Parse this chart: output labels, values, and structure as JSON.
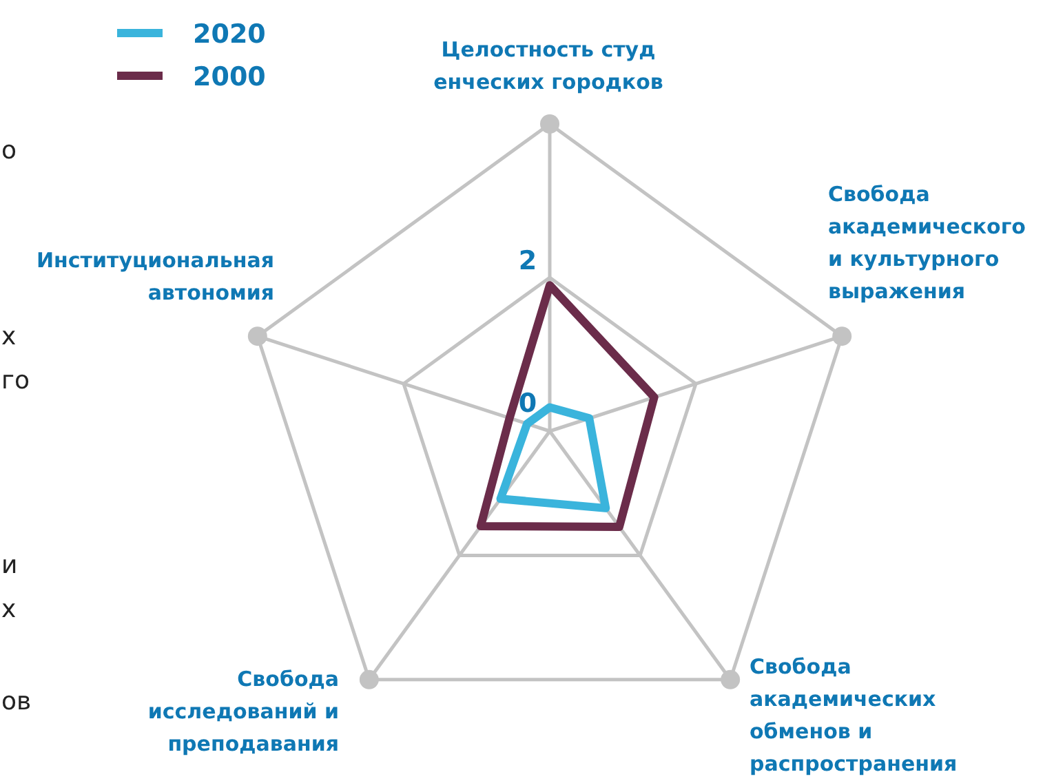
{
  "chart_data": {
    "type": "radar",
    "categories": [
      "Целостность студ\nенческих городков",
      "Свобода\nакадемического\nи культурного\nвыражения",
      "Свобода\nакадемических\nобменов и\nраспространения",
      "Свобода\nисследований и\nпреподавания",
      "Институциональная\nавтономия"
    ],
    "series": [
      {
        "name": "2020",
        "color": "#3ab4dc",
        "values": [
          0.31,
          0.54,
          1.24,
          1.09,
          0.31
        ]
      },
      {
        "name": "2000",
        "color": "#6b2c4a",
        "values": [
          1.9,
          1.43,
          1.54,
          1.53,
          0.55
        ]
      }
    ],
    "ylim": [
      0,
      4
    ],
    "yticks": [
      0,
      2
    ],
    "grid": true,
    "legend": "top left",
    "marker": "none",
    "line_style": "solid",
    "annotations": [
      "о",
      "х",
      "го",
      "и",
      "х",
      "ов"
    ]
  }
}
